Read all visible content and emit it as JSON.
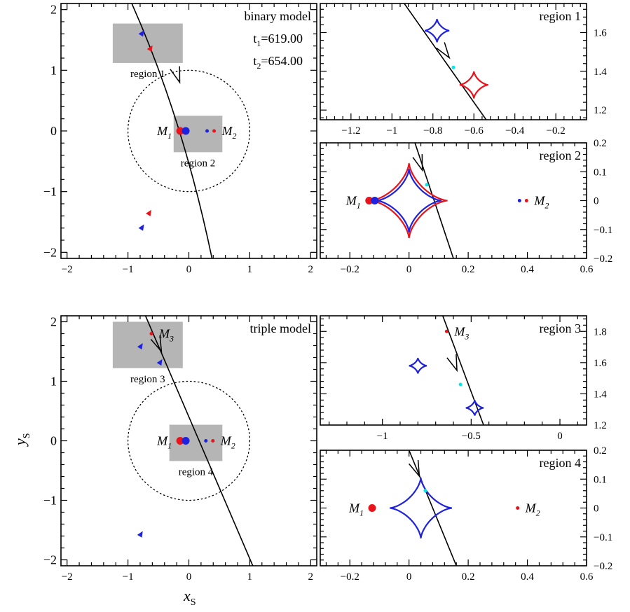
{
  "colors": {
    "t1": "#e8131b",
    "t2": "#1e22e0",
    "cyan": "#00e8e8",
    "gray": "#b5b5b5",
    "black": "#000000"
  },
  "axis_titles": {
    "x": "x",
    "x_sub": "S",
    "y": "y",
    "y_sub": "S"
  },
  "chart_data": [
    {
      "id": "binary-main",
      "type": "scatter",
      "title": "binary model",
      "times": [
        {
          "label": "t",
          "sub": "1",
          "value": "=619.00",
          "color": "#e8131b"
        },
        {
          "label": "t",
          "sub": "2",
          "value": "=654.00",
          "color": "#1e22e0"
        }
      ],
      "xlim": [
        -2.1,
        2.1
      ],
      "ylim": [
        -2.1,
        2.1
      ],
      "xticks": [
        -2,
        -1,
        0,
        1,
        2
      ],
      "yticks": [
        -2,
        -1,
        0,
        1,
        2
      ],
      "tick_labels_x": [
        "−2",
        "−1",
        "0",
        "1",
        "2"
      ],
      "tick_labels_y": [
        "−2",
        "−1",
        "0",
        "1",
        "2"
      ],
      "trajectory": [
        [
          -1.12,
          2.5
        ],
        [
          -0.15,
          0.45
        ],
        [
          0.38,
          -2.1
        ]
      ],
      "arrow_at": [
        -0.15,
        0.8
      ],
      "einstein_ring_radius": 1.0,
      "regions": [
        {
          "label": "region 1",
          "x": [
            -1.25,
            -0.1
          ],
          "y": [
            1.12,
            1.77
          ]
        },
        {
          "label": "region 2",
          "x": [
            -0.25,
            0.55
          ],
          "y": [
            -0.35,
            0.25
          ]
        }
      ],
      "masses": [
        {
          "label": "M",
          "sub": "1",
          "x": -0.12,
          "y": 0.0,
          "size": "large"
        },
        {
          "label": "M",
          "sub": "2",
          "x": 0.38,
          "y": 0.0,
          "size": "small"
        }
      ],
      "source_points": [
        {
          "x": -0.78,
          "y": 1.6,
          "color": "#1e22e0"
        },
        {
          "x": -0.64,
          "y": 1.35,
          "color": "#e8131b"
        },
        {
          "x": -0.66,
          "y": -1.36,
          "color": "#e8131b"
        },
        {
          "x": -0.78,
          "y": -1.6,
          "color": "#1e22e0"
        }
      ]
    },
    {
      "id": "region1",
      "type": "scatter",
      "title": "region 1",
      "xlim": [
        -1.35,
        -0.05
      ],
      "ylim": [
        1.15,
        1.75
      ],
      "xticks": [
        -1.2,
        -1.0,
        -0.8,
        -0.6,
        -0.4,
        -0.2
      ],
      "yticks": [
        1.2,
        1.4,
        1.6
      ],
      "tick_labels_x": [
        "−1.2",
        "−1",
        "−0.8",
        "−0.6",
        "−0.4",
        "−0.2"
      ],
      "tick_labels_y": [
        "1.2",
        "1.4",
        "1.6"
      ],
      "trajectory": [
        [
          -0.96,
          1.78
        ],
        [
          -0.54,
          1.15
        ]
      ],
      "arrow_at": [
        -0.72,
        1.47
      ],
      "caustics": [
        {
          "x": -0.78,
          "y": 1.61,
          "size": 0.06,
          "color": "#1e22e0"
        },
        {
          "x": -0.6,
          "y": 1.33,
          "size": 0.07,
          "color": "#e8131b"
        }
      ],
      "cyan_point": [
        -0.7,
        1.42
      ]
    },
    {
      "id": "region2",
      "type": "scatter",
      "title": "region 2",
      "xlim": [
        -0.3,
        0.6
      ],
      "ylim": [
        -0.2,
        0.2
      ],
      "xticks": [
        -0.2,
        0.0,
        0.2,
        0.4,
        0.6
      ],
      "yticks": [
        -0.2,
        -0.1,
        0.0,
        0.1,
        0.2
      ],
      "tick_labels_x": [
        "−0.2",
        "0",
        "0.2",
        "0.4",
        "0.6"
      ],
      "tick_labels_y": [
        "−0.2",
        "−0.1",
        "0",
        "0.1",
        "0.2"
      ],
      "trajectory": [
        [
          0.02,
          0.2
        ],
        [
          0.15,
          -0.2
        ]
      ],
      "arrow_at": [
        0.045,
        0.105
      ],
      "caustics": [
        {
          "x": 0.0,
          "y": 0.0,
          "size": 0.13,
          "color": "#e8131b"
        },
        {
          "x": 0.0,
          "y": 0.0,
          "size": 0.11,
          "color": "#1e22e0"
        }
      ],
      "cyan_point": [
        0.06,
        0.055
      ],
      "masses": [
        {
          "label": "M",
          "sub": "1",
          "x": -0.13,
          "y": 0.0,
          "size": "large"
        },
        {
          "label": "M",
          "sub": "2",
          "x": 0.39,
          "y": 0.0,
          "size": "small"
        }
      ]
    },
    {
      "id": "triple-main",
      "type": "scatter",
      "title": "triple model",
      "xlim": [
        -2.1,
        2.1
      ],
      "ylim": [
        -2.1,
        2.1
      ],
      "xticks": [
        -2,
        -1,
        0,
        1,
        2
      ],
      "yticks": [
        -2,
        -1,
        0,
        1,
        2
      ],
      "tick_labels_x": [
        "−2",
        "−1",
        "0",
        "1",
        "2"
      ],
      "tick_labels_y": [
        "−2",
        "−1",
        "0",
        "1",
        "2"
      ],
      "trajectory": [
        [
          -0.88,
          2.5
        ],
        [
          1.05,
          -2.1
        ]
      ],
      "arrow_at": [
        -0.45,
        1.5
      ],
      "einstein_ring_radius": 1.0,
      "regions": [
        {
          "label": "region 3",
          "x": [
            -1.25,
            -0.1
          ],
          "y": [
            1.22,
            2.0
          ]
        },
        {
          "label": "region 4",
          "x": [
            -0.32,
            0.55
          ],
          "y": [
            -0.34,
            0.27
          ]
        }
      ],
      "masses": [
        {
          "label": "M",
          "sub": "1",
          "x": -0.12,
          "y": 0.0,
          "size": "large"
        },
        {
          "label": "M",
          "sub": "2",
          "x": 0.36,
          "y": 0.0,
          "size": "small"
        },
        {
          "label": "M",
          "sub": "3",
          "x": -0.65,
          "y": 1.8,
          "size": "small"
        }
      ],
      "source_points": [
        {
          "x": -0.8,
          "y": 1.58,
          "color": "#1e22e0"
        },
        {
          "x": -0.48,
          "y": 1.31,
          "color": "#1e22e0"
        },
        {
          "x": -0.8,
          "y": -1.58,
          "color": "#1e22e0"
        }
      ]
    },
    {
      "id": "region3",
      "type": "scatter",
      "title": "region 3",
      "xlim": [
        -1.35,
        0.15
      ],
      "ylim": [
        1.2,
        1.9
      ],
      "xticks": [
        -1.0,
        -0.5,
        0.0
      ],
      "yticks": [
        1.2,
        1.4,
        1.6,
        1.8
      ],
      "tick_labels_x": [
        "−1",
        "−0.5",
        "0"
      ],
      "tick_labels_y": [
        "1.2",
        "1.4",
        "1.6",
        "1.8"
      ],
      "trajectory": [
        [
          -0.66,
          1.9
        ],
        [
          -0.43,
          1.2
        ]
      ],
      "arrow_at": [
        -0.58,
        1.55
      ],
      "caustics": [
        {
          "x": -0.8,
          "y": 1.58,
          "size": 0.05,
          "color": "#1e22e0"
        },
        {
          "x": -0.48,
          "y": 1.31,
          "size": 0.05,
          "color": "#1e22e0"
        }
      ],
      "cyan_point": [
        -0.56,
        1.46
      ],
      "masses": [
        {
          "label": "M",
          "sub": "3",
          "x": -0.65,
          "y": 1.8,
          "size": "small"
        }
      ]
    },
    {
      "id": "region4",
      "type": "scatter",
      "title": "region 4",
      "xlim": [
        -0.3,
        0.6
      ],
      "ylim": [
        -0.2,
        0.2
      ],
      "xticks": [
        -0.2,
        0.0,
        0.2,
        0.4,
        0.6
      ],
      "yticks": [
        -0.2,
        -0.1,
        0.0,
        0.1,
        0.2
      ],
      "tick_labels_x": [
        "−0.2",
        "0",
        "0.2",
        "0.4",
        "0.6"
      ],
      "tick_labels_y": [
        "−0.2",
        "−0.1",
        "0",
        "0.1",
        "0.2"
      ],
      "trajectory": [
        [
          0.0,
          0.2
        ],
        [
          0.16,
          -0.2
        ]
      ],
      "arrow_at": [
        0.035,
        0.11
      ],
      "caustics": [
        {
          "x": 0.04,
          "y": 0.0,
          "size": 0.105,
          "color": "#1e22e0"
        }
      ],
      "cyan_point": [
        0.055,
        0.06
      ],
      "masses": [
        {
          "label": "M",
          "sub": "1",
          "x": -0.12,
          "y": 0.0,
          "size": "large"
        },
        {
          "label": "M",
          "sub": "2",
          "x": 0.36,
          "y": 0.0,
          "size": "small"
        }
      ]
    }
  ]
}
